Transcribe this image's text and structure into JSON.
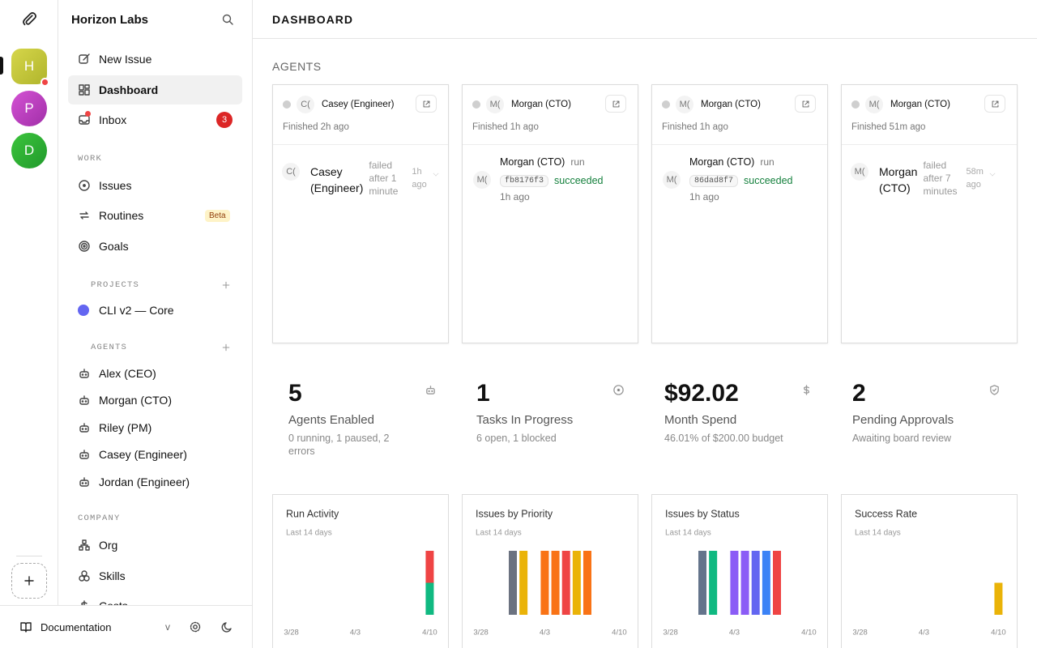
{
  "rail": {
    "companies": [
      "H",
      "P",
      "D"
    ]
  },
  "sidebar": {
    "company": "Horizon Labs",
    "nav": [
      {
        "label": "New Issue"
      },
      {
        "label": "Dashboard"
      },
      {
        "label": "Inbox",
        "badge": 3
      }
    ],
    "sections": [
      {
        "heading": "WORK",
        "items": [
          {
            "label": "Issues"
          },
          {
            "label": "Routines",
            "tag": "Beta"
          },
          {
            "label": "Goals"
          }
        ]
      },
      {
        "heading": "PROJECTS",
        "items": [
          {
            "label": "CLI v2 — Core"
          }
        ]
      },
      {
        "heading": "AGENTS",
        "items": [
          {
            "label": "Alex (CEO)"
          },
          {
            "label": "Morgan (CTO)"
          },
          {
            "label": "Riley (PM)"
          },
          {
            "label": "Casey (Engineer)"
          },
          {
            "label": "Jordan (Engineer)"
          }
        ]
      },
      {
        "heading": "COMPANY",
        "items": [
          {
            "label": "Org"
          },
          {
            "label": "Skills"
          },
          {
            "label": "Costs"
          }
        ]
      }
    ],
    "footer": {
      "docs": "Documentation",
      "version": "v"
    }
  },
  "header": {
    "title": "DASHBOARD"
  },
  "agents": {
    "heading": "AGENTS",
    "cards": [
      {
        "avatar": "C(",
        "name": "Casey (Engineer)",
        "status": "Finished 2h ago",
        "run": {
          "avatar": "C(",
          "agent": "Casey (Engineer)",
          "detail": "failed after 1 minute",
          "time": "1h ago"
        }
      },
      {
        "avatar": "M(",
        "name": "Morgan (CTO)",
        "status": "Finished 1h ago",
        "run": {
          "avatar": "M(",
          "agent": "Morgan (CTO)",
          "verb": "run",
          "hash": "fb8176f3",
          "result": "succeeded",
          "time": "1h ago"
        }
      },
      {
        "avatar": "M(",
        "name": "Morgan (CTO)",
        "status": "Finished 1h ago",
        "run": {
          "avatar": "M(",
          "agent": "Morgan (CTO)",
          "verb": "run",
          "hash": "86dad8f7",
          "result": "succeeded",
          "time": "1h ago"
        }
      },
      {
        "avatar": "M(",
        "name": "Morgan (CTO)",
        "status": "Finished 51m ago",
        "run": {
          "avatar": "M(",
          "agent": "Morgan (CTO)",
          "detail": "failed after 7 minutes",
          "time": "58m ago"
        }
      }
    ]
  },
  "stats": [
    {
      "value": 5,
      "label": "Agents Enabled",
      "detail": "0 running, 1 paused, 2 errors"
    },
    {
      "value": 1,
      "label": "Tasks In Progress",
      "detail": "6 open, 1 blocked"
    },
    {
      "value": "$92.02",
      "label": "Month Spend",
      "detail": "46.01% of $200.00 budget"
    },
    {
      "value": 2,
      "label": "Pending Approvals",
      "detail": "Awaiting board review"
    }
  ],
  "chart_data": [
    {
      "type": "bar",
      "stacked": true,
      "title": "Run Activity",
      "subtitle": "Last 14 days",
      "categories": [
        "3/28",
        null,
        null,
        null,
        null,
        null,
        "4/3",
        null,
        null,
        null,
        null,
        null,
        null,
        "4/10"
      ],
      "ylim": [
        0,
        2
      ],
      "series": [
        {
          "color": "#10b981",
          "values": [
            0,
            0,
            0,
            0,
            0,
            0,
            0,
            0,
            0,
            0,
            0,
            0,
            0,
            1
          ]
        },
        {
          "color": "#ef4444",
          "values": [
            0,
            0,
            0,
            0,
            0,
            0,
            0,
            0,
            0,
            0,
            0,
            0,
            0,
            1
          ]
        }
      ]
    },
    {
      "type": "bar",
      "stacked": true,
      "title": "Issues by Priority",
      "subtitle": "Last 14 days",
      "categories": [
        "3/28",
        null,
        null,
        null,
        null,
        null,
        "4/3",
        null,
        null,
        null,
        null,
        null,
        null,
        "4/10"
      ],
      "ylim": [
        0,
        1
      ],
      "series": [
        {
          "color": "#6b7280",
          "values": [
            0,
            0,
            0,
            1,
            0,
            0,
            0,
            0,
            0,
            0,
            0,
            0,
            0,
            0
          ]
        },
        {
          "color": "#eab308",
          "values": [
            0,
            0,
            0,
            0,
            1,
            0,
            0,
            0,
            0,
            1,
            0,
            0,
            0,
            0
          ]
        },
        {
          "color": "#f97316",
          "values": [
            0,
            0,
            0,
            0,
            0,
            0,
            1,
            1,
            0,
            0,
            1,
            0,
            0,
            0
          ]
        },
        {
          "color": "#ef4444",
          "values": [
            0,
            0,
            0,
            0,
            0,
            0,
            0,
            0,
            1,
            0,
            0,
            0,
            0,
            0
          ]
        }
      ]
    },
    {
      "type": "bar",
      "stacked": true,
      "title": "Issues by Status",
      "subtitle": "Last 14 days",
      "categories": [
        "3/28",
        null,
        null,
        null,
        null,
        null,
        "4/3",
        null,
        null,
        null,
        null,
        null,
        null,
        "4/10"
      ],
      "ylim": [
        0,
        1
      ],
      "series": [
        {
          "color": "#64748b",
          "values": [
            0,
            0,
            0,
            1,
            0,
            0,
            0,
            0,
            0,
            0,
            0,
            0,
            0,
            0
          ]
        },
        {
          "color": "#10b981",
          "values": [
            0,
            0,
            0,
            0,
            1,
            0,
            0,
            0,
            0,
            0,
            0,
            0,
            0,
            0
          ]
        },
        {
          "color": "#8b5cf6",
          "values": [
            0,
            0,
            0,
            0,
            0,
            0,
            1,
            1,
            0,
            0,
            0,
            0,
            0,
            0
          ]
        },
        {
          "color": "#6366f1",
          "values": [
            0,
            0,
            0,
            0,
            0,
            0,
            0,
            0,
            1,
            0,
            0,
            0,
            0,
            0
          ]
        },
        {
          "color": "#3b82f6",
          "values": [
            0,
            0,
            0,
            0,
            0,
            0,
            0,
            0,
            0,
            1,
            0,
            0,
            0,
            0
          ]
        },
        {
          "color": "#ef4444",
          "values": [
            0,
            0,
            0,
            0,
            0,
            0,
            0,
            0,
            0,
            0,
            1,
            0,
            0,
            0
          ]
        }
      ]
    },
    {
      "type": "bar",
      "stacked": false,
      "title": "Success Rate",
      "subtitle": "Last 14 days",
      "categories": [
        "3/28",
        null,
        null,
        null,
        null,
        null,
        "4/3",
        null,
        null,
        null,
        null,
        null,
        null,
        "4/10"
      ],
      "ylim": [
        0,
        100
      ],
      "series": [
        {
          "color": "#eab308",
          "values": [
            null,
            null,
            null,
            null,
            null,
            null,
            null,
            null,
            null,
            null,
            null,
            null,
            null,
            50
          ]
        }
      ]
    }
  ]
}
